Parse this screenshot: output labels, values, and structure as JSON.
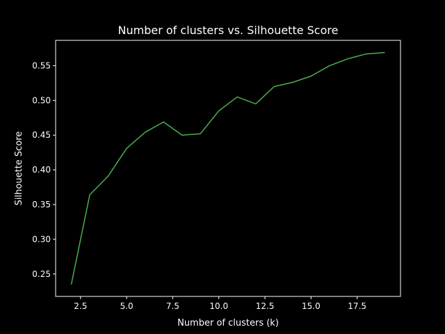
{
  "chart_data": {
    "type": "line",
    "title": "Number of clusters vs. Silhouette Score",
    "xlabel": "Number of clusters (k)",
    "ylabel": "Silhouette Score",
    "xlim": [
      1.15,
      19.85
    ],
    "ylim": [
      0.2177,
      0.5865
    ],
    "x_ticks": [
      2.5,
      5.0,
      7.5,
      10.0,
      12.5,
      15.0,
      17.5
    ],
    "x_tick_labels": [
      "2.5",
      "5.0",
      "7.5",
      "10.0",
      "12.5",
      "15.0",
      "17.5"
    ],
    "y_ticks": [
      0.25,
      0.3,
      0.35,
      0.4,
      0.45,
      0.5,
      0.55
    ],
    "y_tick_labels": [
      "0.25",
      "0.30",
      "0.35",
      "0.40",
      "0.45",
      "0.50",
      "0.55"
    ],
    "grid": false,
    "legend": false,
    "colors": {
      "background": "#000000",
      "axes": "#ffffff",
      "line": "#4caf50"
    },
    "series": [
      {
        "x": [
          2,
          3,
          4,
          5,
          6,
          7,
          8,
          9,
          10,
          11,
          12,
          13,
          14,
          15,
          16,
          17,
          18,
          19
        ],
        "y": [
          0.235,
          0.364,
          0.391,
          0.431,
          0.454,
          0.469,
          0.45,
          0.452,
          0.485,
          0.505,
          0.495,
          0.52,
          0.526,
          0.535,
          0.55,
          0.56,
          0.567,
          0.569
        ]
      }
    ]
  }
}
